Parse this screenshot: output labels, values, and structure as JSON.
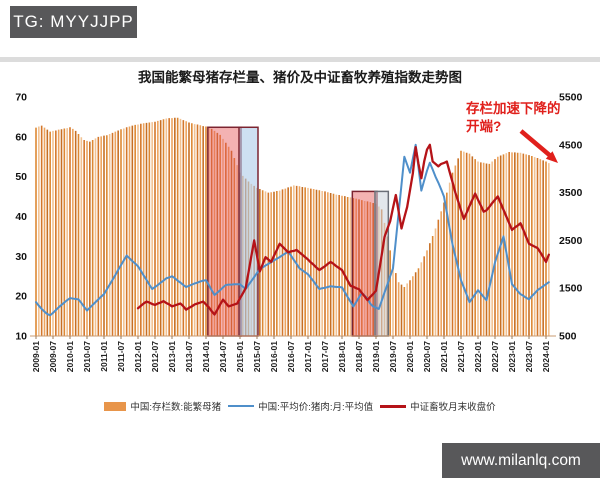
{
  "header": {
    "badge": "TG: MYYJJPP"
  },
  "footer": {
    "watermark": "www.milanlq.com"
  },
  "chart_data": {
    "type": "bar",
    "title": "我国能繁母猪存栏量、猪价及中证畜牧养殖指数走势图",
    "x_start": "2009-01",
    "months_count": 182,
    "x_tick_labels": [
      "2009-01",
      "2009-07",
      "2010-01",
      "2010-07",
      "2011-01",
      "2011-07",
      "2012-01",
      "2012-07",
      "2013-01",
      "2013-07",
      "2014-01",
      "2014-07",
      "2015-01",
      "2015-07",
      "2016-01",
      "2016-07",
      "2017-01",
      "2017-07",
      "2018-01",
      "2018-07",
      "2019-01",
      "2019-07",
      "2020-01",
      "2020-07",
      "2021-01",
      "2021-07",
      "2022-01",
      "2022-07",
      "2023-01",
      "2023-07",
      "2024-01"
    ],
    "left_axis": {
      "min": 10,
      "max": 70,
      "ticks": [
        70,
        60,
        50,
        40,
        30,
        20,
        10
      ]
    },
    "right_axis": {
      "min": 500,
      "max": 5500,
      "ticks": [
        5500,
        4500,
        3500,
        2500,
        1500,
        500
      ]
    },
    "grid": false,
    "legend_position": "bottom",
    "annotation": {
      "line1": "存栏加速下降的",
      "line2": "开端?",
      "color": "#e0201c"
    },
    "colors": {
      "bar_palette": [
        "#dd8833",
        "#f2c292",
        "#d4772b",
        "#eda45f",
        "#c76f24"
      ],
      "axis_line": "#c99b72",
      "badge_bg": "#58585a"
    },
    "highlights": [
      {
        "from": "2014-02",
        "to": "2015-01",
        "top": 62.4,
        "fill": "rgba(231,85,85,0.45)",
        "stroke": "#7c2430"
      },
      {
        "from": "2015-01",
        "to": "2015-07",
        "top": 62.4,
        "fill": "rgba(173,203,233,0.60)",
        "stroke": "#7c2430"
      },
      {
        "from": "2018-05",
        "to": "2019-01",
        "top": 46.3,
        "fill": "rgba(231,85,85,0.45)",
        "stroke": "#7c2430"
      },
      {
        "from": "2019-01",
        "to": "2019-05",
        "top": 46.3,
        "fill": "rgba(203,211,221,0.55)",
        "stroke": "#6a6f78"
      }
    ],
    "series": [
      {
        "name": "中国:存栏数:能繁母猪",
        "type": "bar",
        "axis": "left",
        "color": "#e8954a",
        "values": [
          62.3,
          62.6,
          62.8,
          62.3,
          61.8,
          61.3,
          61.5,
          61.6,
          61.8,
          61.9,
          62.1,
          62.2,
          62.4,
          62.0,
          61.5,
          60.7,
          59.9,
          59.2,
          59.0,
          58.8,
          59.2,
          59.6,
          60.0,
          60.1,
          60.3,
          60.4,
          60.7,
          61.0,
          61.3,
          61.6,
          61.9,
          62.1,
          62.4,
          62.6,
          62.8,
          63.0,
          63.1,
          63.3,
          63.4,
          63.5,
          63.6,
          63.7,
          63.8,
          64.0,
          64.2,
          64.4,
          64.6,
          64.7,
          64.7,
          64.8,
          64.8,
          64.5,
          64.2,
          63.9,
          63.6,
          63.4,
          63.2,
          63.1,
          62.9,
          62.7,
          62.6,
          62.5,
          62.0,
          61.5,
          61.0,
          60.5,
          59.5,
          58.5,
          57.5,
          56.5,
          54.7,
          52.9,
          51.0,
          50.2,
          49.5,
          48.8,
          48.2,
          47.7,
          47.2,
          46.9,
          46.6,
          46.3,
          46.0,
          46.1,
          46.2,
          46.4,
          46.5,
          46.8,
          47.0,
          47.3,
          47.5,
          47.8,
          47.7,
          47.6,
          47.4,
          47.3,
          47.2,
          47.0,
          46.9,
          46.7,
          46.6,
          46.4,
          46.3,
          46.1,
          45.9,
          45.7,
          45.5,
          45.4,
          45.2,
          45.1,
          44.9,
          44.8,
          44.6,
          44.5,
          44.3,
          44.1,
          43.9,
          43.8,
          43.6,
          43.4,
          43.2,
          42.5,
          41.8,
          38.4,
          35.0,
          31.5,
          28.0,
          25.8,
          23.5,
          22.9,
          22.3,
          23.2,
          24.0,
          25.0,
          26.0,
          27.0,
          28.5,
          30.0,
          31.5,
          33.3,
          35.1,
          37.0,
          39.2,
          41.3,
          43.5,
          46.0,
          48.5,
          51.0,
          52.8,
          54.6,
          56.5,
          56.3,
          56.0,
          55.8,
          55.1,
          54.4,
          53.8,
          53.6,
          53.5,
          53.3,
          53.2,
          53.8,
          54.4,
          55.0,
          55.3,
          55.6,
          55.9,
          56.2,
          56.1,
          56.1,
          56.0,
          56.0,
          55.8,
          55.6,
          55.4,
          55.2,
          54.9,
          54.7,
          54.4,
          54.1,
          53.8,
          53.4
        ]
      },
      {
        "name": "中国:平均价:猪肉:月:平均值",
        "type": "line",
        "axis": "left",
        "color": "#4f8fca",
        "values": [
          18.5,
          17.6,
          16.8,
          16.1,
          15.5,
          15.2,
          15.8,
          16.5,
          17.2,
          17.8,
          18.4,
          19.0,
          19.5,
          19.4,
          19.3,
          19.2,
          18.3,
          17.3,
          16.4,
          17.1,
          17.8,
          18.5,
          19.2,
          19.9,
          20.5,
          21.7,
          22.9,
          24.1,
          25.3,
          26.6,
          27.8,
          29.0,
          30.2,
          29.5,
          28.8,
          28.2,
          27.5,
          26.4,
          25.2,
          24.1,
          22.9,
          21.8,
          22.3,
          22.8,
          23.4,
          23.9,
          24.5,
          24.7,
          25.0,
          24.5,
          23.9,
          23.4,
          22.8,
          22.3,
          22.6,
          22.9,
          23.2,
          23.4,
          23.7,
          23.9,
          24.0,
          22.8,
          21.5,
          20.3,
          20.9,
          21.5,
          22.2,
          22.8,
          22.9,
          22.9,
          23.0,
          23.0,
          23.0,
          22.4,
          21.8,
          22.8,
          23.8,
          24.8,
          25.8,
          26.8,
          27.2,
          27.7,
          28.1,
          28.5,
          29.0,
          29.4,
          29.8,
          30.3,
          30.7,
          31.2,
          30.2,
          29.1,
          28.1,
          27.0,
          26.5,
          26.0,
          25.5,
          24.6,
          23.7,
          22.7,
          21.8,
          22.0,
          22.1,
          22.3,
          22.5,
          22.4,
          22.3,
          22.3,
          22.2,
          21.0,
          19.8,
          18.6,
          17.4,
          18.5,
          19.7,
          20.8,
          20.1,
          19.4,
          18.1,
          17.4,
          17.1,
          16.8,
          18.8,
          20.9,
          22.9,
          25.0,
          27.0,
          34.0,
          41.0,
          48.0,
          55.0,
          53.0,
          51.0,
          54.5,
          58.0,
          52.3,
          46.5,
          49.0,
          51.5,
          53.5,
          51.8,
          50.0,
          48.5,
          46.8,
          45.0,
          41.0,
          37.0,
          33.0,
          30.0,
          27.0,
          24.0,
          22.2,
          20.4,
          18.5,
          19.5,
          20.5,
          21.5,
          20.7,
          19.8,
          19.0,
          22.2,
          25.3,
          28.5,
          30.7,
          32.8,
          35.0,
          31.0,
          27.0,
          23.0,
          22.2,
          21.3,
          20.5,
          20.1,
          19.6,
          19.2,
          20.0,
          20.7,
          21.5,
          22.0,
          22.5,
          23.0,
          23.5
        ]
      },
      {
        "name": "中证畜牧月末收盘价",
        "type": "line",
        "axis": "right",
        "color": "#b51318",
        "values": [
          null,
          null,
          null,
          null,
          null,
          null,
          null,
          null,
          null,
          null,
          null,
          null,
          null,
          null,
          null,
          null,
          null,
          null,
          null,
          null,
          null,
          null,
          null,
          null,
          null,
          null,
          null,
          null,
          null,
          null,
          null,
          null,
          null,
          null,
          null,
          null,
          1080,
          1130,
          1180,
          1220,
          1200,
          1170,
          1150,
          1180,
          1200,
          1230,
          1190,
          1160,
          1120,
          1140,
          1160,
          1180,
          1120,
          1050,
          1090,
          1120,
          1160,
          1180,
          1200,
          1220,
          1160,
          1100,
          1020,
          950,
          1050,
          1160,
          1260,
          1190,
          1120,
          1140,
          1160,
          1180,
          1290,
          1390,
          1500,
          1830,
          2170,
          2500,
          2180,
          1850,
          2000,
          2150,
          2100,
          2050,
          2180,
          2300,
          2430,
          2370,
          2310,
          2250,
          2270,
          2280,
          2300,
          2250,
          2200,
          2150,
          2100,
          2040,
          1990,
          1930,
          1880,
          1920,
          1960,
          2010,
          2050,
          2010,
          1960,
          1920,
          1880,
          1770,
          1660,
          1550,
          1530,
          1500,
          1480,
          1400,
          1330,
          1250,
          1320,
          1380,
          1450,
          1820,
          2190,
          2570,
          2740,
          2900,
          3180,
          3450,
          3100,
          2750,
          2980,
          3200,
          3550,
          3900,
          4450,
          4100,
          3800,
          4150,
          4400,
          4500,
          4150,
          4100,
          4050,
          4100,
          4120,
          4150,
          3930,
          3720,
          3500,
          3320,
          3130,
          2950,
          3080,
          3220,
          3350,
          3480,
          3350,
          3230,
          3100,
          3130,
          3200,
          3280,
          3350,
          3420,
          3280,
          3140,
          3000,
          2860,
          2720,
          2770,
          2810,
          2860,
          2720,
          2570,
          2430,
          2400,
          2370,
          2340,
          2250,
          2150,
          2050,
          2200
        ]
      }
    ]
  }
}
